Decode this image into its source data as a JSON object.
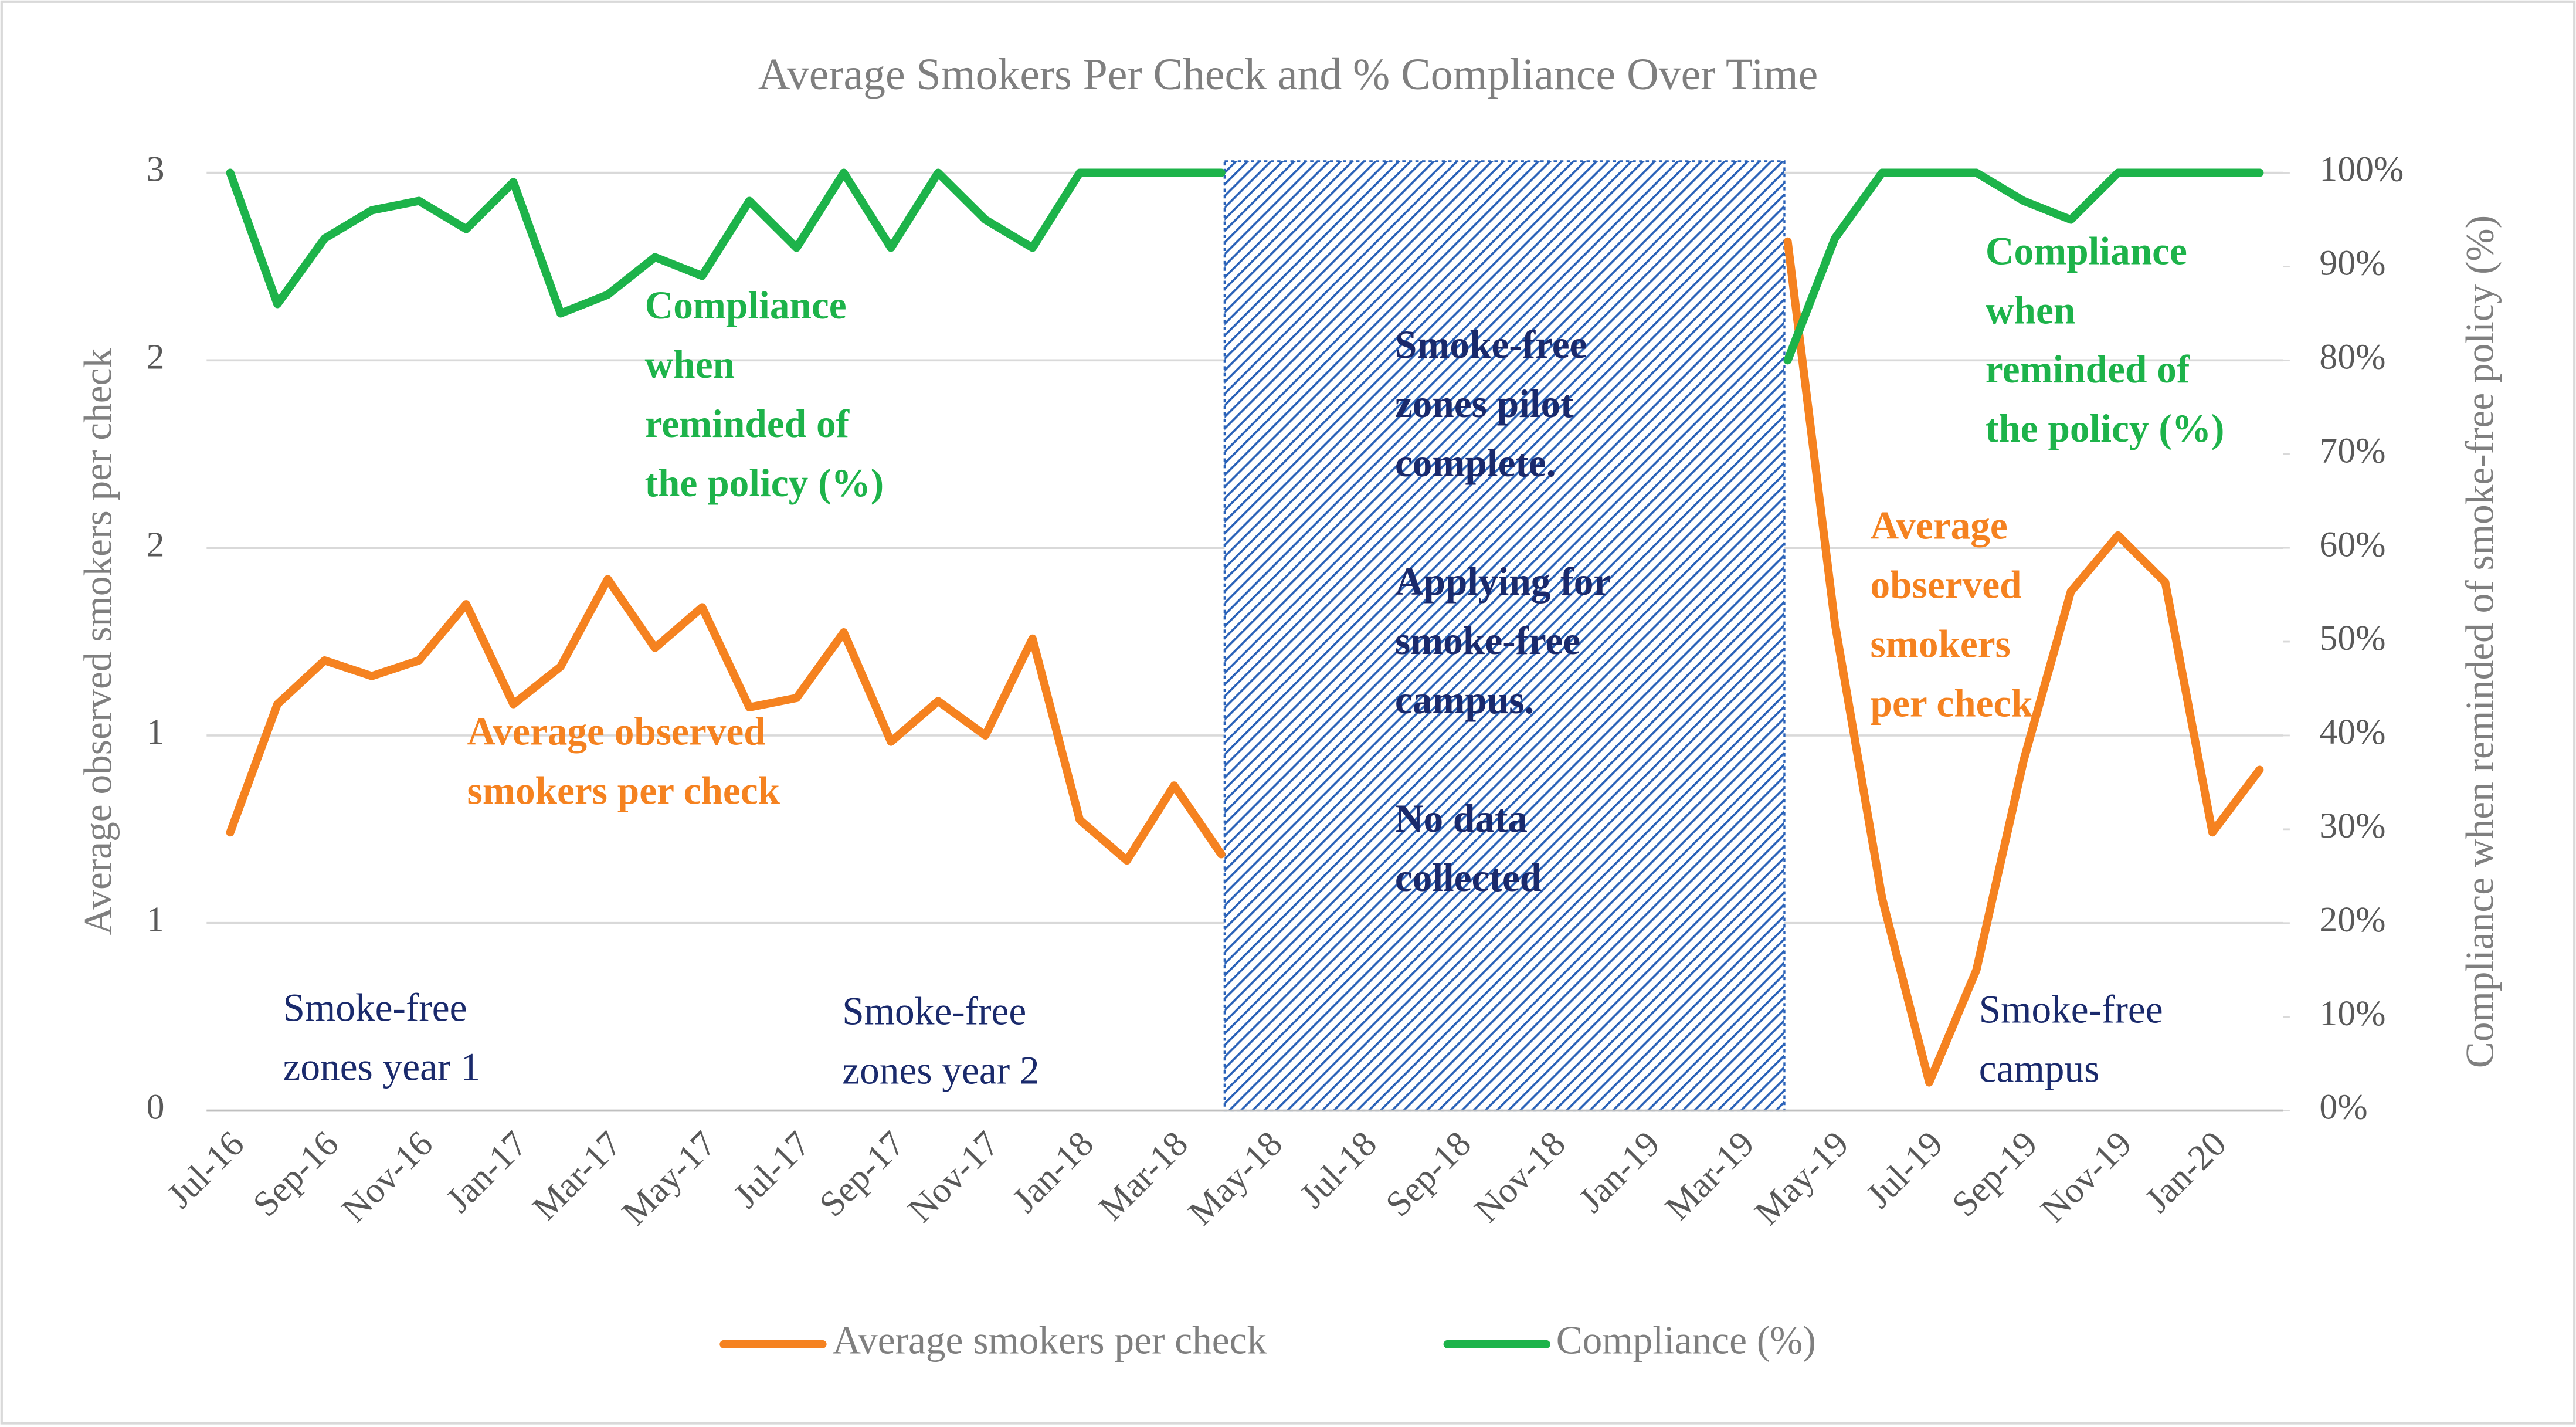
{
  "chart_data": {
    "type": "line",
    "title": "Average Smokers Per Check and % Compliance Over Time",
    "ylabel": "Average observed smokers per check",
    "y2label": "Compliance when reminded of  smoke-free policy (%)",
    "categories": [
      "Jul-16",
      null,
      "Sep-16",
      null,
      "Nov-16",
      null,
      "Jan-17",
      null,
      "Mar-17",
      null,
      "May-17",
      null,
      "Jul-17",
      null,
      "Sep-17",
      null,
      "Nov-17",
      null,
      "Jan-18",
      null,
      "Mar-18",
      null,
      "May-18",
      null,
      "Jul-18",
      null,
      "Sep-18",
      null,
      "Nov-18",
      null,
      "Jan-19",
      null,
      "Mar-19",
      null,
      "May-19",
      null,
      "Jul-19",
      null,
      "Sep-19",
      null,
      "Nov-19",
      null,
      "Jan-20",
      null
    ],
    "series": [
      {
        "name": "Average smokers per check",
        "color": "#f58220",
        "axis": "y",
        "values": [
          0.89,
          1.3,
          1.44,
          1.39,
          1.44,
          1.62,
          1.3,
          1.42,
          1.7,
          1.48,
          1.61,
          1.29,
          1.32,
          1.53,
          1.18,
          1.31,
          1.2,
          1.51,
          0.93,
          0.8,
          1.04,
          0.82,
          null,
          null,
          null,
          null,
          null,
          null,
          null,
          null,
          null,
          null,
          null,
          2.78,
          1.56,
          0.68,
          0.09,
          0.45,
          1.12,
          1.66,
          1.84,
          1.69,
          0.89,
          1.09
        ]
      },
      {
        "name": "Compliance (%)",
        "color": "#1db34a",
        "axis": "y2",
        "values": [
          100,
          86,
          93,
          96,
          97,
          94,
          99,
          85,
          87,
          91,
          89,
          97,
          92,
          100,
          92,
          100,
          95,
          92,
          100,
          100,
          100,
          100,
          null,
          null,
          null,
          null,
          null,
          null,
          null,
          null,
          null,
          null,
          null,
          80,
          93,
          100,
          100,
          100,
          97,
          95,
          100,
          100,
          100,
          100
        ]
      }
    ],
    "ylim": [
      0,
      3
    ],
    "yticks": [
      0,
      {
        "value": 0.6,
        "label": "1"
      },
      {
        "value": 1.2,
        "label": "1"
      },
      {
        "value": 1.8,
        "label": "2"
      },
      {
        "value": 2.4,
        "label": "2"
      },
      3
    ],
    "y2lim": [
      0,
      100
    ],
    "y2ticks": [
      {
        "value": 0,
        "label": "0%"
      },
      {
        "value": 10,
        "label": "10%"
      },
      {
        "value": 20,
        "label": "20%"
      },
      {
        "value": 30,
        "label": "30%"
      },
      {
        "value": 40,
        "label": "40%"
      },
      {
        "value": 50,
        "label": "50%"
      },
      {
        "value": 60,
        "label": "60%"
      },
      {
        "value": 70,
        "label": "70%"
      },
      {
        "value": 80,
        "label": "80%"
      },
      {
        "value": 90,
        "label": "90%"
      },
      {
        "value": 100,
        "label": "100%"
      }
    ],
    "grid": true,
    "legend": "bottom",
    "annotations": [
      {
        "lines": [
          "Compliance",
          "when",
          "reminded of",
          "the policy (%)"
        ],
        "color": "#1db34a",
        "bold": true
      },
      {
        "lines": [
          "Compliance",
          "when",
          "reminded of",
          "the policy (%)"
        ],
        "color": "#1db34a",
        "bold": true
      },
      {
        "lines": [
          "Average observed",
          "smokers per check"
        ],
        "color": "#f58220",
        "bold": true
      },
      {
        "lines": [
          "Average",
          "observed",
          "smokers",
          "per check"
        ],
        "color": "#f58220",
        "bold": true
      },
      {
        "lines": [
          "Smoke-free",
          "zones pilot",
          "complete."
        ],
        "color": "#1a2a6c",
        "bold": true
      },
      {
        "lines": [
          "Applying for",
          "smoke-free",
          "campus."
        ],
        "color": "#1a2a6c",
        "bold": true
      },
      {
        "lines": [
          "No data",
          "collected"
        ],
        "color": "#1a2a6c",
        "bold": true
      },
      {
        "lines": [
          "Smoke-free",
          "zones year 1"
        ],
        "color": "#1a2a6c",
        "bold": false
      },
      {
        "lines": [
          "Smoke-free",
          "zones year 2"
        ],
        "color": "#1a2a6c",
        "bold": false
      },
      {
        "lines": [
          "Smoke-free",
          "campus"
        ],
        "color": "#1a2a6c",
        "bold": false
      }
    ]
  }
}
